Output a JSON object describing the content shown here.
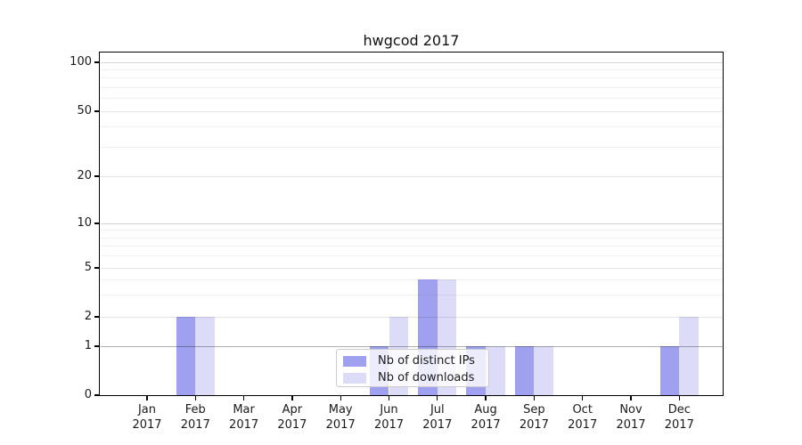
{
  "figure": {
    "background": "#ffffff"
  },
  "chart_data": {
    "type": "bar",
    "title": "hwgcod 2017",
    "categories": [
      "Jan 2017",
      "Feb 2017",
      "Mar 2017",
      "Apr 2017",
      "May 2017",
      "Jun 2017",
      "Jul 2017",
      "Aug 2017",
      "Sep 2017",
      "Oct 2017",
      "Nov 2017",
      "Dec 2017"
    ],
    "series": [
      {
        "name": "Nb of distinct IPs",
        "color": "#a0a0f0",
        "values": [
          0,
          2,
          0,
          0,
          0,
          1,
          4,
          1,
          1,
          0,
          0,
          1
        ]
      },
      {
        "name": "Nb of downloads",
        "color": "#dcdcf8",
        "values": [
          0,
          2,
          0,
          0,
          0,
          2,
          4,
          1,
          1,
          0,
          0,
          2
        ]
      }
    ],
    "xlabel": "",
    "ylabel": "",
    "y_axis": {
      "scale": "log-like with linear 0-1 segment",
      "ticks": [
        0,
        1,
        2,
        5,
        10,
        20,
        50,
        100
      ],
      "minor_gridlines": [
        3,
        4,
        6,
        7,
        8,
        9,
        30,
        40,
        60,
        70,
        80,
        90
      ],
      "range": [
        0,
        100
      ]
    },
    "grid": true,
    "legend": {
      "position": "inside bottom-center",
      "entries": [
        "Nb of distinct IPs",
        "Nb of downloads"
      ]
    }
  }
}
